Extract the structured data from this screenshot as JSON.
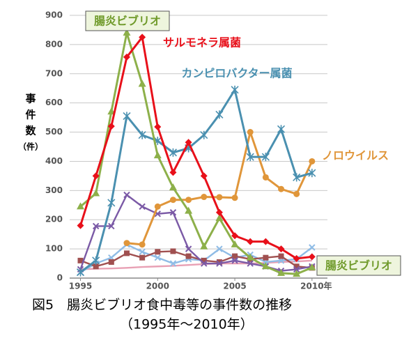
{
  "chart_data": {
    "type": "line",
    "title_lines": [
      "図5　腸炎ビブリオ食中毒等の事件数の推移",
      "（1995年～2010年）"
    ],
    "y_label_lines": [
      "事",
      "件",
      "数",
      "（件）"
    ],
    "x": [
      1995,
      1996,
      1997,
      1998,
      1999,
      2000,
      2001,
      2002,
      2003,
      2004,
      2005,
      2006,
      2007,
      2008,
      2009,
      2010
    ],
    "xlim": [
      1994.3,
      2011
    ],
    "xticks": [
      1995,
      2000,
      2005,
      {
        "value": 2010,
        "label": "2010年"
      }
    ],
    "ylim": [
      0,
      900
    ],
    "yticks": [
      0,
      100,
      200,
      300,
      400,
      500,
      600,
      700,
      800,
      900
    ],
    "grid": true,
    "series": [
      {
        "name": "サルモネラ属菌",
        "color": "#e8101a",
        "marker": "diamond",
        "values": [
          180,
          350,
          520,
          757,
          825,
          518,
          362,
          465,
          350,
          225,
          145,
          125,
          125,
          100,
          67,
          73
        ]
      },
      {
        "name": "腸炎ビブリオ",
        "color": "#8db04a",
        "marker": "triangle",
        "values": [
          245,
          290,
          570,
          840,
          665,
          420,
          310,
          230,
          108,
          205,
          115,
          70,
          40,
          17,
          14,
          36
        ]
      },
      {
        "name": "カンピロバクター属菌",
        "color": "#4a90b0",
        "marker": "star",
        "values": [
          20,
          60,
          258,
          555,
          490,
          470,
          430,
          445,
          490,
          560,
          645,
          415,
          415,
          510,
          345,
          360
        ]
      },
      {
        "name": "ノロウイルス",
        "color": "#e0963a",
        "marker": "circle",
        "values": [
          null,
          null,
          null,
          120,
          115,
          245,
          268,
          268,
          278,
          277,
          275,
          500,
          345,
          305,
          288,
          400
        ]
      },
      {
        "color": "#7b5aa6",
        "marker": "cross",
        "values": [
          30,
          178,
          178,
          285,
          245,
          220,
          225,
          100,
          50,
          50,
          60,
          50,
          40,
          25,
          30,
          40
        ]
      },
      {
        "color": "#a05050",
        "marker": "square",
        "values": [
          60,
          40,
          55,
          85,
          70,
          90,
          92,
          75,
          60,
          55,
          75,
          65,
          70,
          75,
          40,
          35
        ]
      },
      {
        "color": "#8fbce6",
        "marker": "cross",
        "values": [
          20,
          50,
          70,
          115,
          90,
          70,
          50,
          65,
          60,
          100,
          70,
          80,
          55,
          60,
          65,
          105
        ]
      },
      {
        "color": "#e8a0b4",
        "marker": "none",
        "values": [
          30,
          32,
          33,
          35,
          38,
          40,
          42,
          45,
          48,
          50,
          50,
          50,
          52,
          55,
          57,
          60
        ]
      }
    ]
  }
}
